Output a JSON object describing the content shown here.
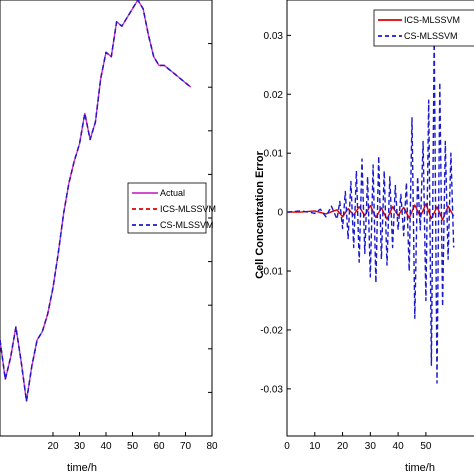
{
  "chart_data": [
    {
      "type": "line",
      "xlabel": "time/h",
      "ylabel": "",
      "xlim": [
        0,
        80
      ],
      "ylim": [
        0,
        1
      ],
      "x_ticks": [
        20,
        30,
        40,
        50,
        60,
        70,
        80
      ],
      "x_tick_labels": [
        "20",
        "30",
        "40",
        "50",
        "60",
        "70",
        "80"
      ],
      "legend": {
        "position": "center-right",
        "entries": [
          "Actual",
          "ICS-MLSSVM",
          "CS-MLSSVM"
        ]
      },
      "series": [
        {
          "name": "Actual",
          "color": "#cc33cc",
          "style": "solid",
          "x": [
            0,
            2,
            4,
            6,
            8,
            10,
            12,
            14,
            16,
            18,
            20,
            22,
            24,
            26,
            28,
            30,
            32,
            34,
            36,
            38,
            40,
            42,
            44,
            46,
            48,
            50,
            52,
            54,
            56,
            58,
            60,
            62,
            64,
            66,
            68,
            70,
            72
          ],
          "y": [
            0.22,
            0.13,
            0.18,
            0.25,
            0.17,
            0.08,
            0.16,
            0.22,
            0.24,
            0.28,
            0.34,
            0.42,
            0.51,
            0.58,
            0.63,
            0.67,
            0.74,
            0.68,
            0.72,
            0.82,
            0.88,
            0.87,
            0.95,
            0.94,
            0.96,
            0.98,
            1.0,
            0.98,
            0.92,
            0.87,
            0.85,
            0.85,
            0.84,
            0.83,
            0.82,
            0.81,
            0.8
          ]
        },
        {
          "name": "ICS-MLSSVM",
          "color": "#dd0000",
          "style": "dashed",
          "x": [
            0,
            2,
            4,
            6,
            8,
            10,
            12,
            14,
            16,
            18,
            20,
            22,
            24,
            26,
            28,
            30,
            32,
            34,
            36,
            38,
            40,
            42,
            44,
            46,
            48,
            50,
            52,
            54,
            56,
            58,
            60,
            62,
            64,
            66,
            68,
            70,
            72
          ],
          "y": [
            0.22,
            0.13,
            0.18,
            0.25,
            0.17,
            0.08,
            0.16,
            0.22,
            0.24,
            0.28,
            0.34,
            0.42,
            0.51,
            0.58,
            0.63,
            0.67,
            0.74,
            0.68,
            0.72,
            0.82,
            0.88,
            0.87,
            0.95,
            0.94,
            0.96,
            0.98,
            1.0,
            0.98,
            0.92,
            0.87,
            0.85,
            0.85,
            0.84,
            0.83,
            0.82,
            0.81,
            0.8
          ]
        },
        {
          "name": "CS-MLSSVM",
          "color": "#1a1acc",
          "style": "dashed",
          "x": [
            0,
            2,
            4,
            6,
            8,
            10,
            12,
            14,
            16,
            18,
            20,
            22,
            24,
            26,
            28,
            30,
            32,
            34,
            36,
            38,
            40,
            42,
            44,
            46,
            48,
            50,
            52,
            54,
            56,
            58,
            60,
            62,
            64,
            66,
            68,
            70,
            72
          ],
          "y": [
            0.22,
            0.13,
            0.18,
            0.25,
            0.17,
            0.08,
            0.16,
            0.22,
            0.24,
            0.28,
            0.34,
            0.42,
            0.51,
            0.58,
            0.63,
            0.67,
            0.74,
            0.68,
            0.72,
            0.82,
            0.88,
            0.87,
            0.95,
            0.94,
            0.96,
            0.98,
            1.0,
            0.98,
            0.92,
            0.87,
            0.85,
            0.85,
            0.84,
            0.83,
            0.82,
            0.81,
            0.8
          ]
        }
      ]
    },
    {
      "type": "line",
      "xlabel": "time/h",
      "ylabel": "Cell Concentration Error",
      "xlim": [
        0,
        72
      ],
      "ylim": [
        -0.038,
        0.036
      ],
      "x_ticks": [
        0,
        10,
        20,
        30,
        40,
        50
      ],
      "x_tick_labels": [
        "0",
        "10",
        "20",
        "30",
        "40",
        "50"
      ],
      "y_ticks": [
        -0.03,
        -0.02,
        -0.01,
        0,
        0.01,
        0.02,
        0.03
      ],
      "y_tick_labels": [
        "-0.03",
        "-0.02",
        "-0.01",
        "0",
        "0.01",
        "0.02",
        "0.03"
      ],
      "legend": {
        "position": "top-right",
        "entries": [
          "ICS-MLSSVM",
          "CS-MLSSVM"
        ]
      },
      "series": [
        {
          "name": "ICS-MLSSVM",
          "color": "#dd0000",
          "style": "solid",
          "x": [
            0,
            5,
            10,
            14,
            18,
            20,
            22,
            24,
            26,
            28,
            30,
            32,
            34,
            36,
            38,
            40,
            42,
            44,
            46,
            48,
            50,
            52,
            54,
            56,
            58,
            60
          ],
          "y": [
            0,
            0,
            0.0002,
            -0.0003,
            0.0004,
            -0.0008,
            0.0006,
            -0.0005,
            0.0009,
            -0.0006,
            0.0011,
            -0.0009,
            0.0007,
            -0.0012,
            0.0009,
            -0.0006,
            0.0008,
            -0.001,
            0.0012,
            -0.0008,
            0.0014,
            -0.0011,
            0.0009,
            -0.0013,
            0.001,
            -0.0007
          ]
        },
        {
          "name": "CS-MLSSVM",
          "color": "#1a1acc",
          "style": "dashed",
          "x": [
            0,
            5,
            10,
            12,
            14,
            16,
            18,
            19,
            20,
            21,
            22,
            23,
            24,
            25,
            26,
            27,
            28,
            29,
            30,
            31,
            32,
            33,
            34,
            35,
            36,
            37,
            38,
            39,
            40,
            41,
            42,
            43,
            44,
            45,
            46,
            47,
            48,
            49,
            50,
            51,
            52,
            53,
            54,
            55,
            56,
            57,
            58,
            59,
            60
          ],
          "y": [
            0,
            0.0002,
            -0.0002,
            0.0005,
            -0.0008,
            0.001,
            -0.0012,
            0.0018,
            -0.0028,
            0.0035,
            -0.0045,
            0.0052,
            -0.006,
            0.007,
            -0.0085,
            0.009,
            -0.007,
            0.006,
            -0.011,
            0.008,
            -0.012,
            0.0095,
            -0.008,
            0.007,
            -0.009,
            0.006,
            -0.006,
            0.0045,
            -0.003,
            0.003,
            -0.004,
            0.005,
            -0.01,
            0.016,
            -0.018,
            0.006,
            -0.003,
            0.012,
            -0.015,
            0.019,
            -0.026,
            0.03,
            -0.029,
            0.022,
            -0.016,
            0.012,
            -0.008,
            0.01,
            -0.006
          ]
        }
      ]
    }
  ]
}
